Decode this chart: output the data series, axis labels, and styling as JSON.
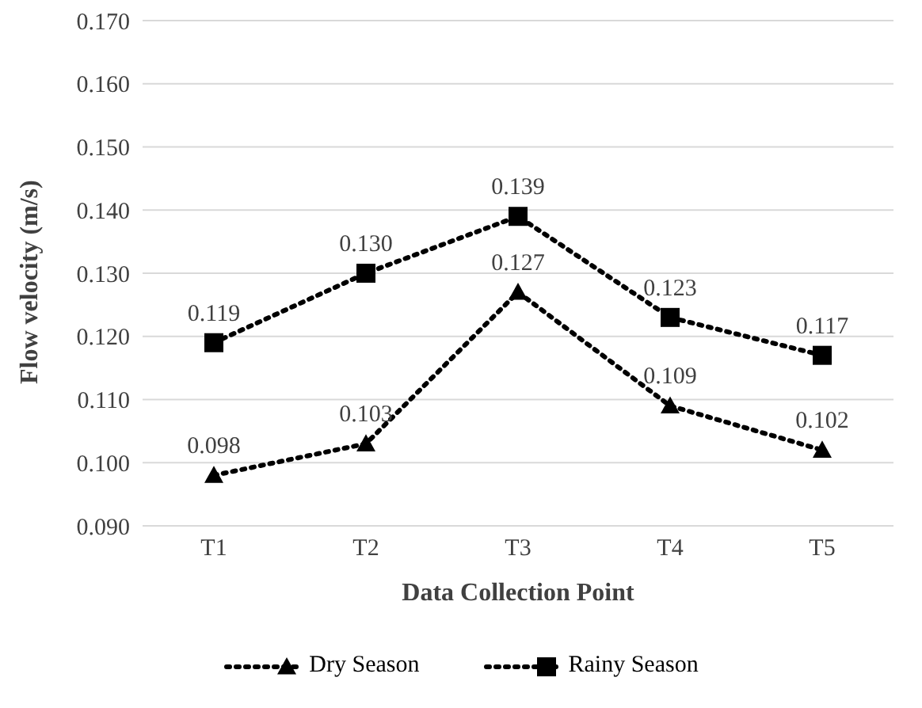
{
  "chart_data": {
    "type": "line",
    "xlabel": "Data Collection Point",
    "ylabel": "Flow velocity (m/s)",
    "categories": [
      "T1",
      "T2",
      "T3",
      "T4",
      "T5"
    ],
    "series": [
      {
        "name": "Dry Season",
        "color": "#000000",
        "marker": "triangle",
        "values": [
          0.098,
          0.103,
          0.127,
          0.109,
          0.102
        ],
        "value_labels": [
          "0.098",
          "0.103",
          "0.127",
          "0.109",
          "0.102"
        ]
      },
      {
        "name": "Rainy Season",
        "color": "#000000",
        "marker": "square",
        "values": [
          0.119,
          0.13,
          0.139,
          0.123,
          0.117
        ],
        "value_labels": [
          "0.119",
          "0.130",
          "0.139",
          "0.123",
          "0.117"
        ]
      }
    ],
    "ylim": [
      0.09,
      0.17
    ],
    "yticks": [
      {
        "value": 0.09,
        "label": "0.090"
      },
      {
        "value": 0.1,
        "label": "0.100"
      },
      {
        "value": 0.11,
        "label": "0.110"
      },
      {
        "value": 0.12,
        "label": "0.120"
      },
      {
        "value": 0.13,
        "label": "0.130"
      },
      {
        "value": 0.14,
        "label": "0.140"
      },
      {
        "value": 0.15,
        "label": "0.150"
      },
      {
        "value": 0.16,
        "label": "0.160"
      },
      {
        "value": 0.17,
        "label": "0.170"
      }
    ],
    "grid": "y",
    "legend": "bottom",
    "line_style": "dotted"
  }
}
